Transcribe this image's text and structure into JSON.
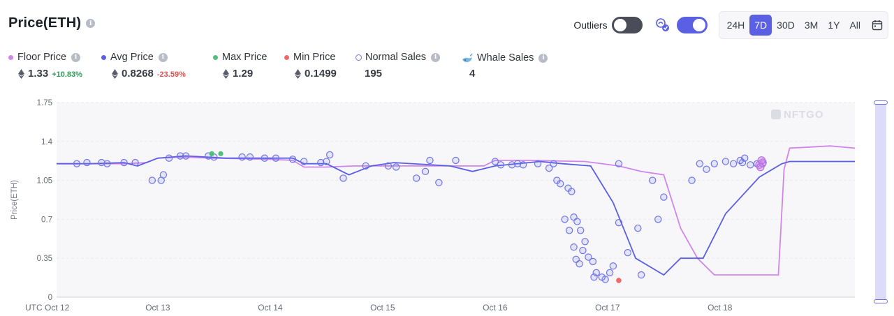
{
  "header": {
    "title": "Price(ETH)",
    "outliers_label": "Outliers",
    "outliers_on": false,
    "whale_toggle_on": true,
    "ranges": [
      "24H",
      "7D",
      "30D",
      "3M",
      "1Y",
      "All"
    ],
    "active_range": "7D",
    "info_glyph": "i"
  },
  "legend": {
    "floor": {
      "label": "Floor Price",
      "value": "1.33",
      "change": "+10.83%",
      "color": "#c77fe8"
    },
    "avg": {
      "label": "Avg Price",
      "value": "0.8268",
      "change": "-23.59%",
      "color": "#5a5fe3"
    },
    "max": {
      "label": "Max Price",
      "value": "1.29",
      "color": "#4fbf7a"
    },
    "min": {
      "label": "Min Price",
      "value": "0.1499",
      "color": "#ef6a6a"
    },
    "normal": {
      "label": "Normal Sales",
      "value": "195"
    },
    "whale": {
      "label": "Whale Sales",
      "value": "4"
    }
  },
  "chart_data": {
    "type": "scatter",
    "title": "Price(ETH)",
    "ylabel": "Price(ETH)",
    "xlabel": "",
    "ylim": [
      0,
      1.75
    ],
    "xlim": [
      -0.9,
      6.2
    ],
    "yticks": [
      "0",
      "0.35",
      "0.7",
      "1.05",
      "1.4",
      "1.75"
    ],
    "ytick_values": [
      0,
      0.35,
      0.7,
      1.05,
      1.4,
      1.75
    ],
    "xticks": [
      "UTC Oct 12",
      "Oct 13",
      "Oct 14",
      "Oct 15",
      "Oct 16",
      "Oct 17",
      "Oct 18"
    ],
    "xtick_values": [
      -0.9,
      0,
      1,
      2,
      3,
      4,
      5
    ],
    "watermark": "NFTGO",
    "colors": {
      "floor": "#cf86ea",
      "avg": "#5a5fe3",
      "sale": "#6f73e8",
      "max": "#4fbf7a",
      "min": "#ef6a6a",
      "grid": "#e8e9ef"
    },
    "series": [
      {
        "name": "Floor Price",
        "points": [
          [
            -0.9,
            1.2
          ],
          [
            -0.6,
            1.2
          ],
          [
            -0.3,
            1.2
          ],
          [
            -0.1,
            1.21
          ],
          [
            0,
            1.25
          ],
          [
            0.2,
            1.26
          ],
          [
            0.5,
            1.25
          ],
          [
            1,
            1.24
          ],
          [
            1.2,
            1.23
          ],
          [
            1.3,
            1.17
          ],
          [
            1.5,
            1.17
          ],
          [
            1.75,
            1.18
          ],
          [
            2,
            1.18
          ],
          [
            2.5,
            1.18
          ],
          [
            2.9,
            1.18
          ],
          [
            3,
            1.23
          ],
          [
            3.3,
            1.23
          ],
          [
            3.8,
            1.22
          ],
          [
            4.1,
            1.18
          ],
          [
            4.3,
            1.13
          ],
          [
            4.5,
            1.1
          ],
          [
            4.65,
            0.62
          ],
          [
            4.8,
            0.35
          ],
          [
            4.95,
            0.2
          ],
          [
            5.2,
            0.2
          ],
          [
            5.52,
            0.2
          ],
          [
            5.57,
            1.15
          ],
          [
            5.62,
            1.34
          ],
          [
            5.8,
            1.35
          ],
          [
            5.98,
            1.36
          ],
          [
            6.2,
            1.34
          ]
        ]
      },
      {
        "name": "Avg Price",
        "points": [
          [
            -0.9,
            1.2
          ],
          [
            -0.6,
            1.2
          ],
          [
            -0.3,
            1.21
          ],
          [
            -0.18,
            1.18
          ],
          [
            0,
            1.25
          ],
          [
            0.25,
            1.27
          ],
          [
            0.6,
            1.25
          ],
          [
            1,
            1.25
          ],
          [
            1.2,
            1.25
          ],
          [
            1.3,
            1.2
          ],
          [
            1.5,
            1.2
          ],
          [
            1.7,
            1.1
          ],
          [
            1.9,
            1.18
          ],
          [
            2.1,
            1.21
          ],
          [
            2.6,
            1.18
          ],
          [
            2.8,
            1.13
          ],
          [
            3,
            1.18
          ],
          [
            3.4,
            1.22
          ],
          [
            3.6,
            1.2
          ],
          [
            3.85,
            1.18
          ],
          [
            4.05,
            0.85
          ],
          [
            4.25,
            0.35
          ],
          [
            4.5,
            0.2
          ],
          [
            4.65,
            0.35
          ],
          [
            4.85,
            0.35
          ],
          [
            5.05,
            0.75
          ],
          [
            5.35,
            1.08
          ],
          [
            5.55,
            1.2
          ],
          [
            5.62,
            1.22
          ],
          [
            6.2,
            1.22
          ]
        ]
      },
      {
        "name": "Normal Sales",
        "points": [
          [
            -0.72,
            1.2
          ],
          [
            -0.63,
            1.21
          ],
          [
            -0.5,
            1.21
          ],
          [
            -0.45,
            1.2
          ],
          [
            -0.3,
            1.21
          ],
          [
            -0.2,
            1.21
          ],
          [
            -0.05,
            1.05
          ],
          [
            0.03,
            1.05
          ],
          [
            0.05,
            1.1
          ],
          [
            0.1,
            1.25
          ],
          [
            0.2,
            1.27
          ],
          [
            0.25,
            1.27
          ],
          [
            0.45,
            1.27
          ],
          [
            0.5,
            1.26
          ],
          [
            0.75,
            1.26
          ],
          [
            0.82,
            1.26
          ],
          [
            0.95,
            1.25
          ],
          [
            1.05,
            1.25
          ],
          [
            1.2,
            1.24
          ],
          [
            1.3,
            1.22
          ],
          [
            1.45,
            1.21
          ],
          [
            1.5,
            1.22
          ],
          [
            1.53,
            1.28
          ],
          [
            1.65,
            1.07
          ],
          [
            1.85,
            1.18
          ],
          [
            2.05,
            1.18
          ],
          [
            2.12,
            1.17
          ],
          [
            2.3,
            1.07
          ],
          [
            2.38,
            1.13
          ],
          [
            2.42,
            1.23
          ],
          [
            2.5,
            1.03
          ],
          [
            2.65,
            1.23
          ],
          [
            3,
            1.22
          ],
          [
            3.05,
            1.19
          ],
          [
            3.15,
            1.19
          ],
          [
            3.2,
            1.2
          ],
          [
            3.25,
            1.19
          ],
          [
            3.38,
            1.2
          ],
          [
            3.48,
            1.16
          ],
          [
            3.52,
            1.2
          ],
          [
            3.55,
            1.05
          ],
          [
            3.58,
            1.02
          ],
          [
            3.65,
            0.98
          ],
          [
            3.68,
            0.95
          ],
          [
            3.62,
            0.7
          ],
          [
            3.7,
            0.72
          ],
          [
            3.73,
            0.68
          ],
          [
            3.66,
            0.6
          ],
          [
            3.76,
            0.6
          ],
          [
            3.8,
            0.5
          ],
          [
            3.7,
            0.45
          ],
          [
            3.78,
            0.42
          ],
          [
            3.83,
            0.36
          ],
          [
            3.72,
            0.34
          ],
          [
            3.87,
            0.32
          ],
          [
            3.75,
            0.3
          ],
          [
            3.9,
            0.22
          ],
          [
            3.95,
            0.18
          ],
          [
            3.88,
            0.18
          ],
          [
            3.98,
            0.16
          ],
          [
            4.02,
            0.22
          ],
          [
            4.05,
            0.28
          ],
          [
            4.1,
            0.67
          ],
          [
            4.18,
            0.4
          ],
          [
            4.3,
            0.2
          ],
          [
            4.4,
            1.05
          ],
          [
            4.27,
            0.62
          ],
          [
            4.45,
            0.7
          ],
          [
            4.5,
            0.9
          ],
          [
            4.75,
            1.05
          ],
          [
            4.82,
            1.2
          ],
          [
            4.88,
            1.15
          ],
          [
            4.95,
            1.2
          ],
          [
            5.05,
            1.22
          ],
          [
            5.12,
            1.2
          ],
          [
            5.18,
            1.23
          ],
          [
            5.2,
            1.21
          ],
          [
            5.22,
            1.25
          ],
          [
            5.27,
            1.19
          ],
          [
            5.33,
            1.2
          ],
          [
            5.38,
            1.2
          ],
          [
            4.1,
            1.2
          ]
        ]
      },
      {
        "name": "Max Price",
        "points": [
          [
            0.48,
            1.29
          ],
          [
            0.56,
            1.29
          ]
        ]
      },
      {
        "name": "Min Price",
        "points": [
          [
            4.1,
            0.1499
          ]
        ]
      },
      {
        "name": "Whale Sales",
        "points": [
          [
            5.35,
            1.19
          ],
          [
            5.38,
            1.21
          ],
          [
            5.37,
            1.23
          ],
          [
            5.36,
            1.17
          ]
        ]
      }
    ]
  }
}
